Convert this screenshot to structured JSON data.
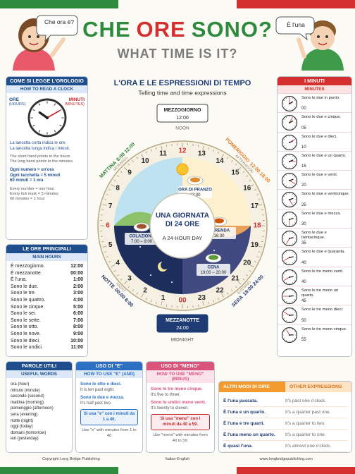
{
  "header": {
    "title": [
      "CHE",
      "ORE",
      "SONO?"
    ],
    "subtitle": "WHAT TIME IS IT?",
    "bubble_left": "Che ora è?",
    "bubble_right": "È l'una"
  },
  "read_clock": {
    "title": "COME SI LEGGE L'OROLOGIO",
    "subtitle": "HOW TO READ A CLOCK",
    "hours_label": "ORE",
    "hours_en": "(HOURS)",
    "minutes_label": "MINUTI",
    "minutes_en": "(MINUTES)",
    "lines_it": [
      "La lancetta corta indica le ore.",
      "La lancetta lunga indica i minuti."
    ],
    "lines_en": [
      "The short hand points to the hours.",
      "The long hand points to the minutes."
    ],
    "rules_it": [
      "Ogni numero = un'ora",
      "Ogni tacchetta = 5 minuti",
      "60 minuti = 1 ora"
    ],
    "rules_en": [
      "Every number = one hour",
      "Every tick mark = 5 minutes",
      "60 minutes = 1 hour"
    ]
  },
  "main_hours": {
    "title": "LE ORE PRINCIPALI",
    "subtitle": "MAIN HOURS",
    "rows": [
      [
        "È mezzogiorno.",
        "12:00"
      ],
      [
        "È mezzanotte.",
        "00:00"
      ],
      [
        "È l'una.",
        "1:00"
      ],
      [
        "Sono le due.",
        "2:00"
      ],
      [
        "Sono le tre.",
        "3:00"
      ],
      [
        "Sono le quattro.",
        "4:00"
      ],
      [
        "Sono le cinque.",
        "5:00"
      ],
      [
        "Sono le sei.",
        "6:00"
      ],
      [
        "Sono le sette.",
        "7:00"
      ],
      [
        "Sono le otto.",
        "8:00"
      ],
      [
        "Sono le nove.",
        "9:00"
      ],
      [
        "Sono le dieci.",
        "10:00"
      ],
      [
        "Sono le undici.",
        "11:00"
      ]
    ]
  },
  "wheel": {
    "title": "L'ORA E LE ESPRESSIONI DI TEMPO",
    "subtitle": "Telling time and time expressions",
    "noon": {
      "label": "MEZZOGIORNO",
      "time": "12:00",
      "en": "NOON"
    },
    "midnight": {
      "label": "MEZZANOTTE",
      "time": "24:00",
      "en": "MIDNIGHT"
    },
    "periods": [
      {
        "label": "MATTINA",
        "range": "6:00 12:00",
        "en": "MORNING"
      },
      {
        "label": "POMERIGGIO",
        "range": "12:00 18:00",
        "en": "AFTERNOON"
      },
      {
        "label": "SERA",
        "range": "18:00 24:00",
        "en": "EVENING"
      },
      {
        "label": "NOTTE",
        "range": "00:00 6:00",
        "en": "NIGHT"
      }
    ],
    "meals": [
      {
        "label": "ORA DI PRANZO",
        "time": "13:00"
      },
      {
        "label": "COLAZIONE",
        "time": "7:00 – 9:00"
      },
      {
        "label": "MERENDA",
        "time": "16:30"
      },
      {
        "label": "CENA",
        "time": "19:00 – 20:00"
      }
    ],
    "center": [
      "UNA GIORNATA",
      "DI 24 ORE"
    ],
    "center_en": "A 24-HOUR DAY",
    "hours": [
      "12",
      "13",
      "14",
      "15",
      "16",
      "17",
      "18",
      "19",
      "20",
      "21",
      "22",
      "23",
      "00",
      "1",
      "2",
      "3",
      "4",
      "5",
      "6",
      "7",
      "8",
      "9",
      "10",
      "11"
    ]
  },
  "minutes": {
    "title": "I MINUTI",
    "subtitle": "MINUTES",
    "rows": [
      [
        "Sono le due in punto.",
        "00"
      ],
      [
        "Sono le due e cinque.",
        "05"
      ],
      [
        "Sono le due e dieci.",
        "10"
      ],
      [
        "Sono le due e un quarto.",
        "15"
      ],
      [
        "Sono le due e venti.",
        "20"
      ],
      [
        "Sono le due e venticinque.",
        "25"
      ],
      [
        "Sono le due e mezza.",
        "30"
      ],
      [
        "Sono le due e trentacinque.",
        "35"
      ],
      [
        "Sono le due e quaranta.",
        "40"
      ],
      [
        "Sono le tre meno venti.",
        "40"
      ],
      [
        "Sono le tre meno un quarto.",
        "45"
      ],
      [
        "Sono le tre meno dieci.",
        "50"
      ],
      [
        "Sono le tre meno cinque.",
        "55"
      ]
    ]
  },
  "useful_words": {
    "title": "PAROLE UTILI",
    "subtitle": "USEFUL WORDS",
    "words": [
      "ora (hour)",
      "minuto (minute)",
      "secondo (second)",
      "mattina (morning)",
      "pomeriggio (afternoon)",
      "sera (evening)",
      "notte (night)",
      "oggi (today)",
      "domani (tomorrow)",
      "ieri (yesterday)"
    ]
  },
  "use_e": {
    "title": "USO DI \"E\"",
    "subtitle": "HOW TO USE \"E\" (AND)",
    "examples": [
      [
        "Sono le otto e dieci.",
        "It is ten past eight."
      ],
      [
        "Sono le due e mezza.",
        "It's half past two."
      ]
    ],
    "rule_it": "Si usa \"e\" con i minuti da 1 a 40.",
    "rule_en": "Use \"e\" with minutes from 1 to 40"
  },
  "use_meno": {
    "title": "USO DI \"MENO\"",
    "subtitle": "HOW TO USE \"MENO\" (MINUS)",
    "examples": [
      [
        "Sono le tre meno cinque.",
        "It's five to three."
      ],
      [
        "Sono le undici meno venti.",
        "It's twenty to eleven."
      ]
    ],
    "rule_it": "Si usa \"meno\" con i minuti da 40 a 59.",
    "rule_en": "Use \"meno\" with minutes from 40 to 59."
  },
  "other": {
    "title_it": "ALTRI MODI DI DIRE",
    "title_en": "OTHER EXPRESSIONS",
    "rows": [
      [
        "È l'una passata.",
        "It's past one o'clock."
      ],
      [
        "È l'una e un quarto.",
        "It's a quarter past one."
      ],
      [
        "È l'una e tre quarti.",
        "It's a quarter to two."
      ],
      [
        "È l'una meno un quarto.",
        "It's a quarter to one."
      ],
      [
        "È quasi l'una.",
        "It's almost one o'clock."
      ]
    ]
  },
  "footer": {
    "left": "Copyright Long Bridge Publishing",
    "center": "Italian-English",
    "right": "www.longbridgepublishing.com"
  }
}
